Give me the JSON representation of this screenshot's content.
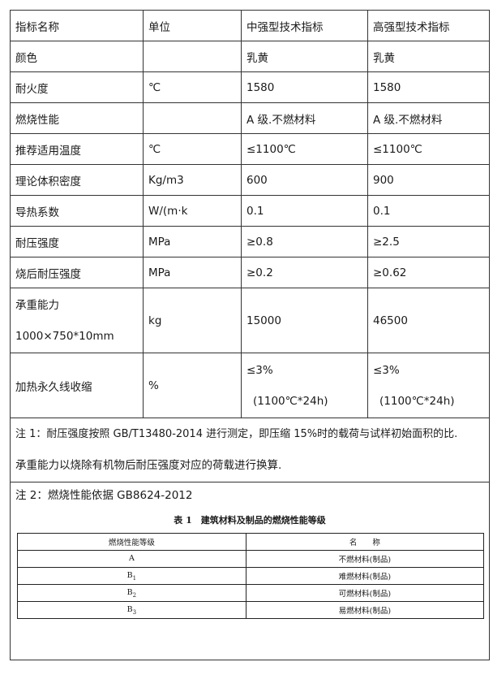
{
  "table": {
    "headers": [
      "指标名称",
      "单位",
      "中强型技术指标",
      "高强型技术指标"
    ],
    "rows": [
      [
        "颜色",
        "",
        "乳黄",
        "乳黄"
      ],
      [
        "耐火度",
        "℃",
        "1580",
        "1580"
      ],
      [
        "燃烧性能",
        "",
        "A 级.不燃材料",
        "A 级.不燃材料"
      ],
      [
        "推荐适用温度",
        "℃",
        "≤1100℃",
        "≤1100℃"
      ],
      [
        "理论体积密度",
        "Kg/m3",
        "600",
        "900"
      ],
      [
        "导热系数",
        "W/(m·k",
        "0.1",
        "0.1"
      ],
      [
        "耐压强度",
        "MPa",
        "≥0.8",
        "≥2.5"
      ],
      [
        "烧后耐压强度",
        "MPa",
        "≥0.2",
        "≥0.62"
      ]
    ],
    "load": {
      "name_line1": "承重能力",
      "name_line2": "1000×750*10mm",
      "unit": "kg",
      "mid": "15000",
      "high": "46500"
    },
    "shrink": {
      "name": "加热永久线收缩",
      "unit": "%",
      "mid_line1": "≤3%",
      "mid_line2": "(1100℃*24h)",
      "high_line1": "≤3%",
      "high_line2": "(1100℃*24h)"
    }
  },
  "notes": {
    "note1_line1": "注 1：耐压强度按照 GB/T13480-2014 进行测定，即压缩 15%时的载荷与试样初始面积的比.",
    "note1_line2": "承重能力以烧除有机物后耐压强度对应的荷载进行换算.",
    "note2": "注 2：燃烧性能依据 GB8624-2012"
  },
  "subtable": {
    "caption": "表 1　建筑材料及制品的燃烧性能等级",
    "headers": [
      "燃烧性能等级",
      "名　　称"
    ],
    "rows": [
      {
        "grade": "A",
        "sub": "",
        "name": "不燃材料(制品)"
      },
      {
        "grade": "B",
        "sub": "1",
        "name": "难燃材料(制品)"
      },
      {
        "grade": "B",
        "sub": "2",
        "name": "可燃材料(制品)"
      },
      {
        "grade": "B",
        "sub": "3",
        "name": "易燃材料(制品)"
      }
    ]
  }
}
